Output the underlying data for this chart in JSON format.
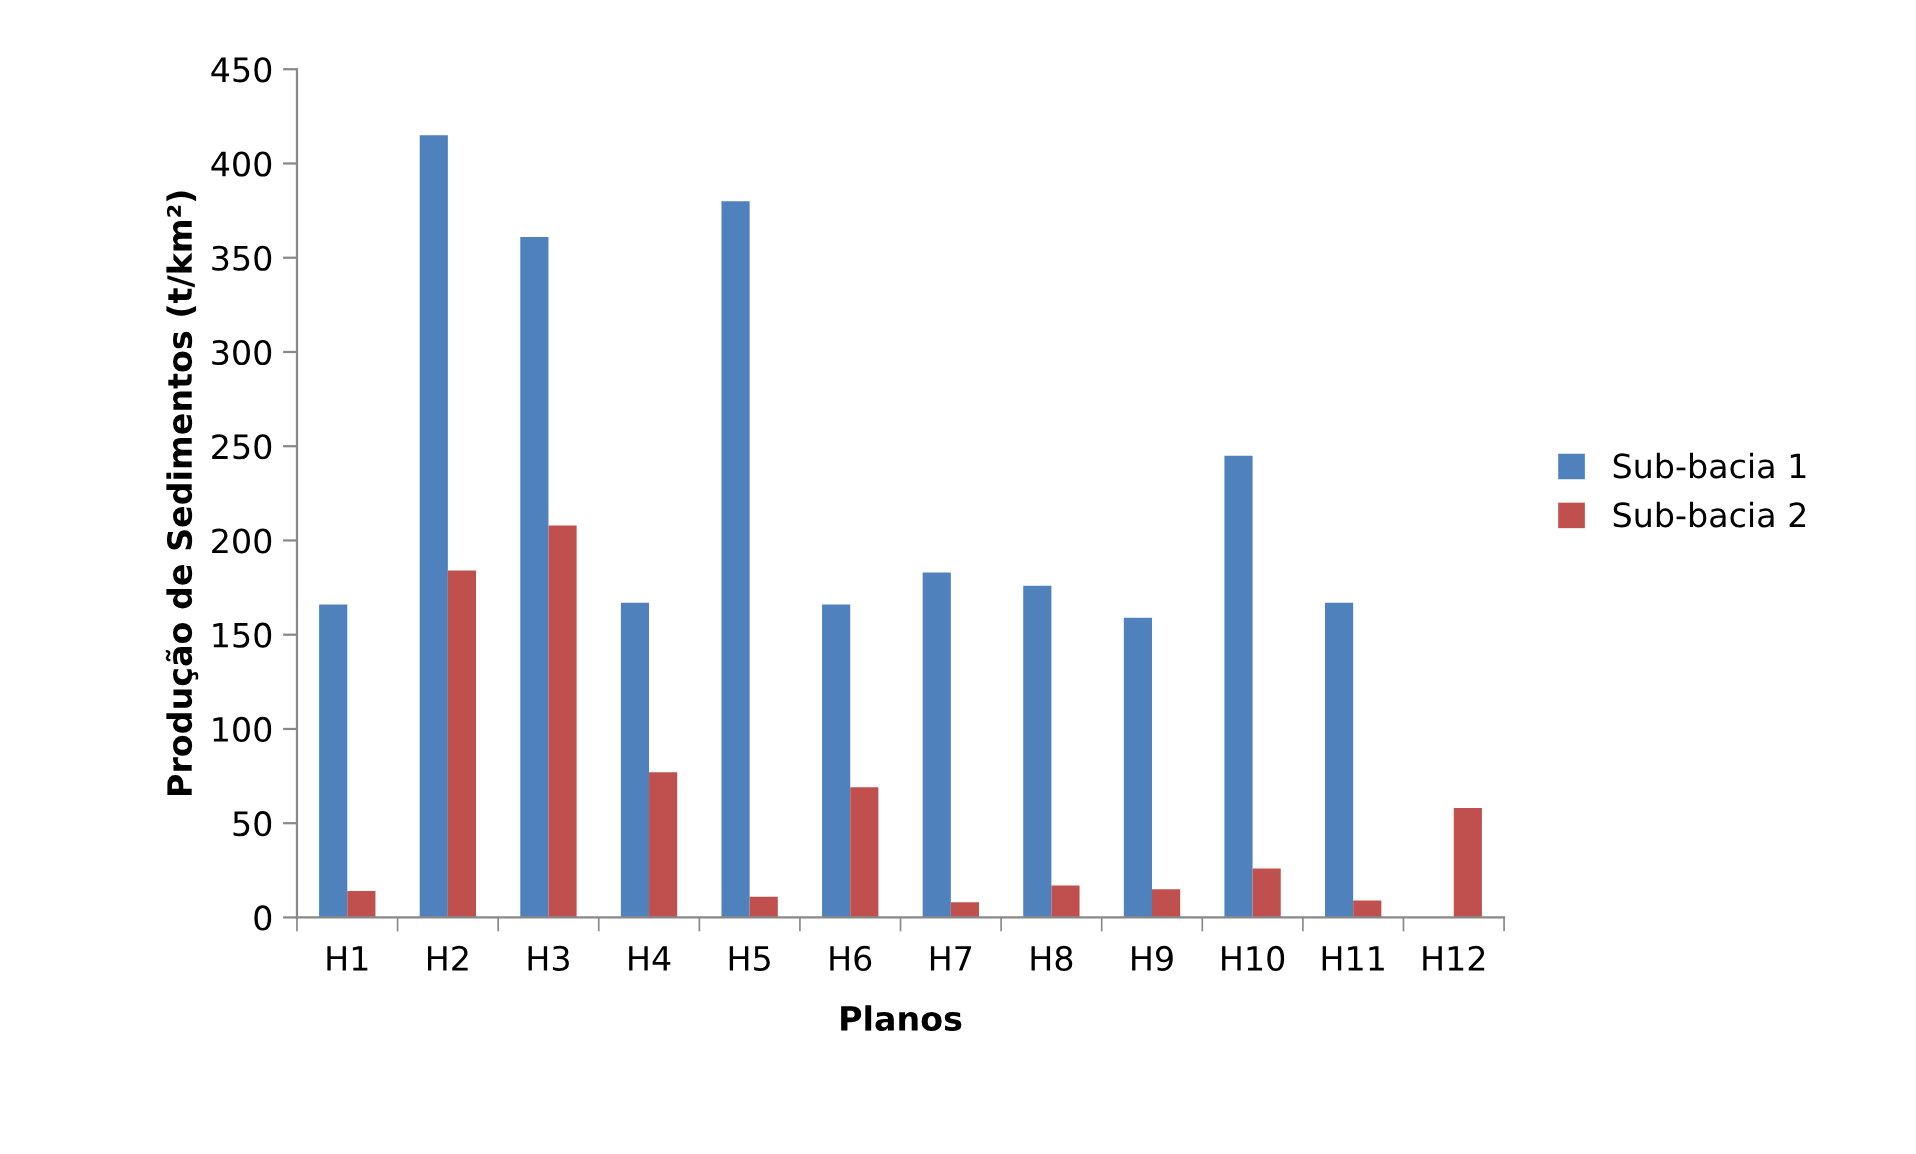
{
  "chart_data": {
    "type": "bar",
    "xlabel": "Planos",
    "ylabel": "Produção de Sedimentos (t/km²)",
    "categories": [
      "H1",
      "H2",
      "H3",
      "H4",
      "H5",
      "H6",
      "H7",
      "H8",
      "H9",
      "H10",
      "H11",
      "H12"
    ],
    "series": [
      {
        "name": "Sub-bacia 1",
        "color": "#4f81bd",
        "values": [
          166,
          415,
          361,
          167,
          380,
          166,
          183,
          176,
          159,
          245,
          167,
          null
        ]
      },
      {
        "name": "Sub-bacia 2",
        "color": "#c0504d",
        "values": [
          14,
          184,
          208,
          77,
          11,
          69,
          8,
          17,
          15,
          26,
          9,
          58
        ]
      }
    ],
    "ylim": [
      0,
      450
    ],
    "yticks": [
      0,
      50,
      100,
      150,
      200,
      250,
      300,
      350,
      400,
      450
    ],
    "grid": false,
    "legend": "right"
  }
}
